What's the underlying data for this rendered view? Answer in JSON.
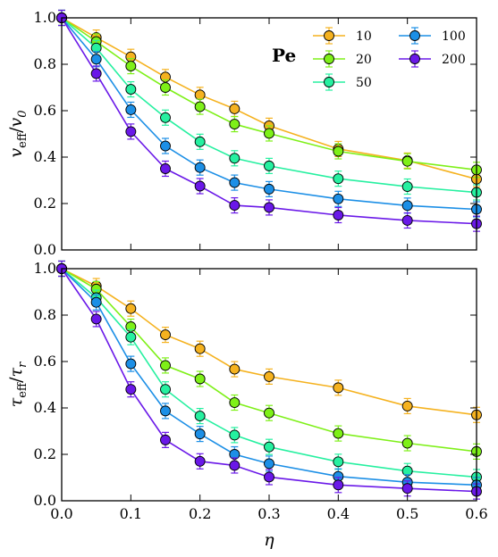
{
  "chart_data": [
    {
      "type": "line",
      "ylabel": "v_eff/v_0",
      "ylabel_parts": {
        "main": "v",
        "sub": "eff",
        "sep": "/",
        "main2": "v",
        "sub2": "0"
      },
      "xlim": [
        0.0,
        0.6
      ],
      "ylim": [
        0.0,
        1.0
      ],
      "xticks": [
        0.0,
        0.1,
        0.2,
        0.3,
        0.4,
        0.5,
        0.6
      ],
      "xtick_labels": [
        "",
        "",
        "",
        "",
        "",
        "",
        ""
      ],
      "yticks": [
        0.0,
        0.2,
        0.4,
        0.6,
        0.8,
        1.0
      ],
      "ytick_labels": [
        "0.0",
        "0.2",
        "0.4",
        "0.6",
        "0.8",
        "1.0"
      ],
      "x": [
        0.0,
        0.05,
        0.1,
        0.15,
        0.2,
        0.25,
        0.3,
        0.4,
        0.5,
        0.6
      ],
      "legend": {
        "title": "Pe",
        "placement": "top-right",
        "ncol": 2
      },
      "series": [
        {
          "name": "10",
          "color": "#f5b21f",
          "values": [
            1.0,
            0.915,
            0.832,
            0.745,
            0.668,
            0.608,
            0.535,
            0.435,
            0.385,
            0.305
          ]
        },
        {
          "name": "20",
          "color": "#7ef018",
          "values": [
            1.0,
            0.898,
            0.792,
            0.7,
            0.617,
            0.542,
            0.502,
            0.425,
            0.382,
            0.345
          ]
        },
        {
          "name": "50",
          "color": "#26f0a0",
          "values": [
            1.0,
            0.87,
            0.692,
            0.57,
            0.466,
            0.395,
            0.362,
            0.307,
            0.273,
            0.248
          ]
        },
        {
          "name": "100",
          "color": "#1c8fe6",
          "values": [
            1.0,
            0.822,
            0.604,
            0.448,
            0.355,
            0.29,
            0.262,
            0.22,
            0.191,
            0.175
          ]
        },
        {
          "name": "200",
          "color": "#6a18e8",
          "values": [
            1.0,
            0.76,
            0.51,
            0.35,
            0.275,
            0.192,
            0.183,
            0.15,
            0.127,
            0.113
          ]
        }
      ]
    },
    {
      "type": "line",
      "ylabel": "τ_eff/τ_r",
      "ylabel_parts": {
        "main": "τ",
        "sub": "eff",
        "sep": "/",
        "main2": "τ",
        "sub2": "r"
      },
      "xlabel": "η",
      "xlim": [
        0.0,
        0.6
      ],
      "ylim": [
        0.0,
        1.0
      ],
      "xticks": [
        0.0,
        0.1,
        0.2,
        0.3,
        0.4,
        0.5,
        0.6
      ],
      "xtick_labels": [
        "0.0",
        "0.1",
        "0.2",
        "0.3",
        "0.4",
        "0.5",
        "0.6"
      ],
      "yticks": [
        0.0,
        0.2,
        0.4,
        0.6,
        0.8,
        1.0
      ],
      "ytick_labels": [
        "0.0",
        "0.2",
        "0.4",
        "0.6",
        "0.8",
        "1.0"
      ],
      "x": [
        0.0,
        0.05,
        0.1,
        0.15,
        0.2,
        0.25,
        0.3,
        0.4,
        0.5,
        0.6
      ],
      "series": [
        {
          "name": "10",
          "color": "#f5b21f",
          "values": [
            1.0,
            0.925,
            0.828,
            0.715,
            0.655,
            0.567,
            0.535,
            0.487,
            0.408,
            0.37
          ]
        },
        {
          "name": "20",
          "color": "#7ef018",
          "values": [
            1.0,
            0.912,
            0.75,
            0.583,
            0.525,
            0.423,
            0.378,
            0.29,
            0.248,
            0.212
          ]
        },
        {
          "name": "50",
          "color": "#26f0a0",
          "values": [
            1.0,
            0.875,
            0.705,
            0.48,
            0.365,
            0.283,
            0.232,
            0.168,
            0.128,
            0.102
          ]
        },
        {
          "name": "100",
          "color": "#1c8fe6",
          "values": [
            1.0,
            0.855,
            0.59,
            0.387,
            0.288,
            0.2,
            0.16,
            0.105,
            0.08,
            0.068
          ]
        },
        {
          "name": "200",
          "color": "#6a18e8",
          "values": [
            1.0,
            0.783,
            0.48,
            0.262,
            0.17,
            0.152,
            0.102,
            0.068,
            0.053,
            0.04
          ]
        }
      ]
    }
  ]
}
